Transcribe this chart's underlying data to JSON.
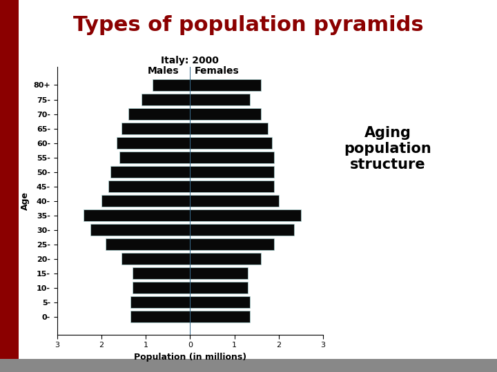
{
  "title": "Types of population pyramids",
  "subtitle": "Italy: 2000",
  "age_groups": [
    "0-",
    "5-",
    "10-",
    "15-",
    "20-",
    "25-",
    "30-",
    "35-",
    "40-",
    "45-",
    "50-",
    "55-",
    "60-",
    "65-",
    "70-",
    "75-",
    "80+"
  ],
  "males": [
    1.35,
    1.35,
    1.3,
    1.3,
    1.55,
    1.9,
    2.25,
    2.4,
    2.0,
    1.85,
    1.8,
    1.6,
    1.65,
    1.55,
    1.4,
    1.1,
    0.85
  ],
  "females": [
    1.35,
    1.35,
    1.3,
    1.3,
    1.6,
    1.9,
    2.35,
    2.5,
    2.0,
    1.9,
    1.9,
    1.9,
    1.85,
    1.75,
    1.6,
    1.35,
    1.6
  ],
  "xlim": 3.0,
  "bar_color": "#080808",
  "bar_edge_color": "#b0d8d8",
  "bar_height": 0.82,
  "title_color": "#8B0000",
  "title_fontsize": 22,
  "subtitle_fontsize": 10,
  "tick_fontsize": 8,
  "axis_label_fontsize": 9,
  "annotation_fontsize": 15,
  "annotation_text": "Aging\npopulation\nstructure",
  "xlabel": "Population (in millions)",
  "ylabel": "Age",
  "legend_males": "Males",
  "legend_females": "Females",
  "bg_color": "#ffffff",
  "slide_left_color": "#8B0000",
  "bottom_strip_color": "#888888"
}
